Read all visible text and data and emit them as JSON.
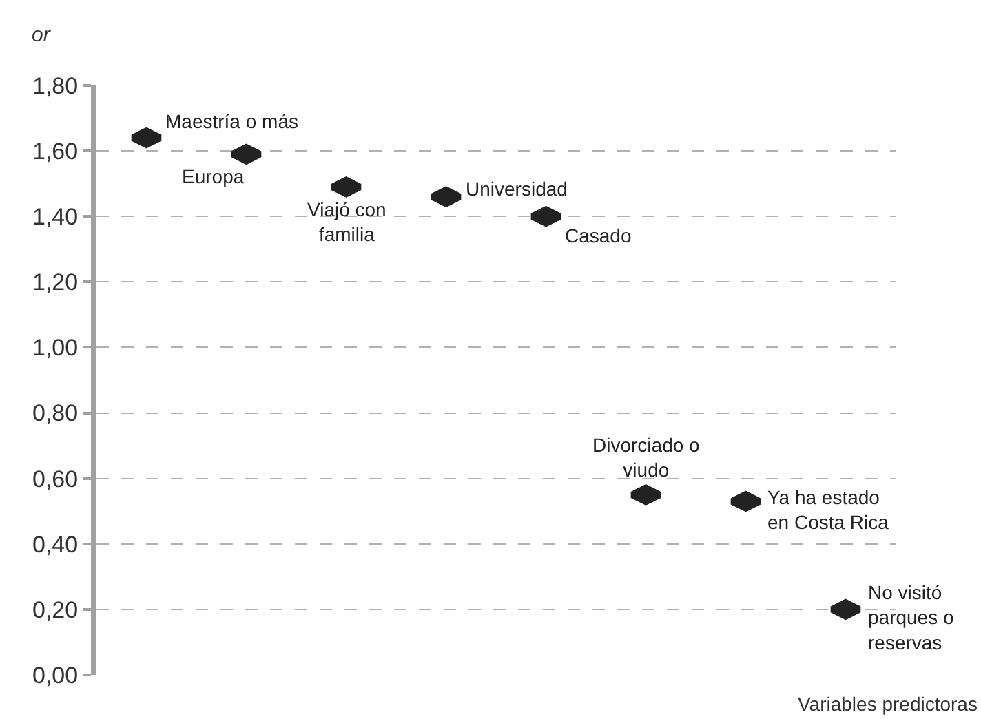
{
  "chart_data": {
    "type": "scatter",
    "ylabel": "or",
    "xlabel": "Variables predictoras",
    "categories": [
      null,
      null,
      null,
      null,
      null,
      null,
      null,
      null
    ],
    "series": [
      {
        "color": "#222222",
        "values": [
          1.64,
          1.59,
          1.49,
          1.46,
          1.4,
          0.55,
          0.53,
          0.2
        ]
      }
    ],
    "annotations": [
      "Maestría o más",
      "Europa",
      "Viajó con\nfamilia",
      "Universidad",
      "Casado",
      "Divorciado o\nviudo",
      "Ya ha estado\nen Costa Rica",
      "No visitó\nparques o\nreservas"
    ],
    "ylim": [
      0,
      1.8
    ],
    "yticks": [
      {
        "value": 0,
        "label": "0,00"
      },
      {
        "value": 0.2,
        "label": "0,20"
      },
      {
        "value": 0.4,
        "label": "0,40"
      },
      {
        "value": 0.6,
        "label": "0,60"
      },
      {
        "value": 0.8,
        "label": "0,80"
      },
      {
        "value": 1.0,
        "label": "1,00"
      },
      {
        "value": 1.2,
        "label": "1,20"
      },
      {
        "value": 1.4,
        "label": "1,40"
      },
      {
        "value": 1.6,
        "label": "1,60"
      },
      {
        "value": 1.8,
        "label": "1,80"
      }
    ],
    "grid": "y",
    "tick_labels": "y"
  }
}
